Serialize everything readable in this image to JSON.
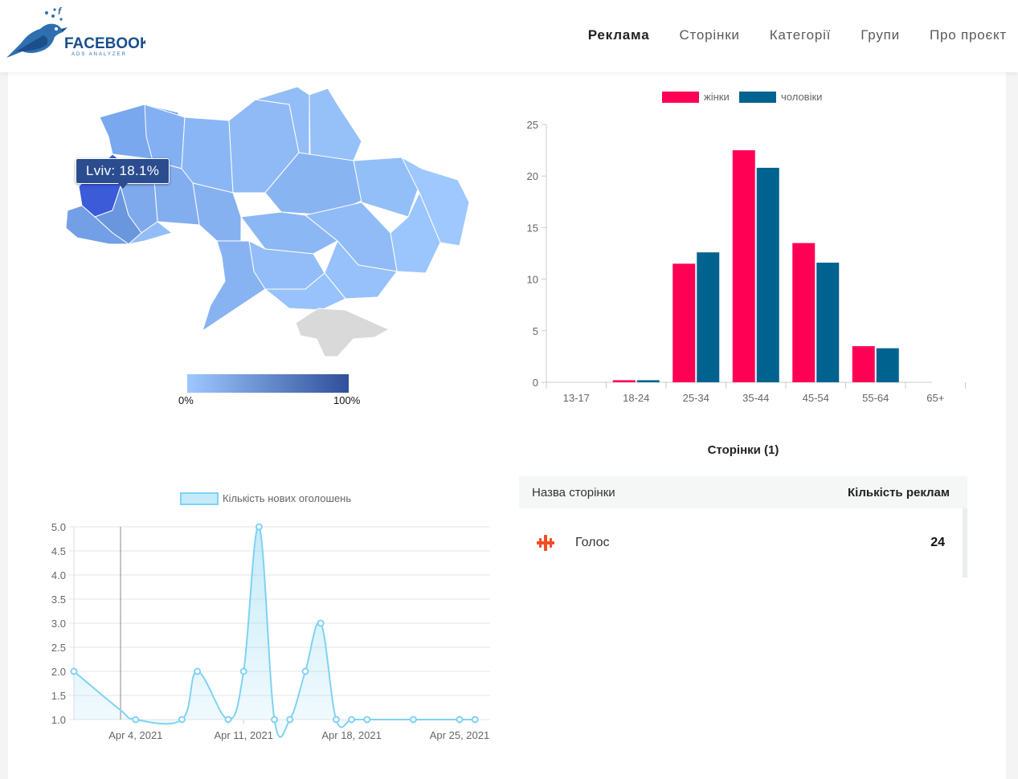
{
  "header": {
    "logo_text": "FACEBOOK",
    "logo_subtext": "ADS ANALYZER",
    "nav": [
      {
        "label": "Реклама",
        "active": true
      },
      {
        "label": "Сторінки",
        "active": false
      },
      {
        "label": "Категорії",
        "active": false
      },
      {
        "label": "Групи",
        "active": false
      },
      {
        "label": "Про проєкт",
        "active": false
      }
    ]
  },
  "map": {
    "tooltip": "Lviv: 18.1%",
    "scale_min": "0%",
    "scale_max": "100%",
    "colors": {
      "low": "#9ec8ff",
      "high": "#2f4f9a",
      "highlight": "#3b5bd9",
      "crimea": "#d9d9d9"
    }
  },
  "chart_data": [
    {
      "type": "bar",
      "categories": [
        "13-17",
        "18-24",
        "25-34",
        "35-44",
        "45-54",
        "55-64",
        "65+"
      ],
      "series": [
        {
          "name": "жінки",
          "color": "#ff0055",
          "values": [
            0,
            0.2,
            11.5,
            22.5,
            13.5,
            3.5,
            0
          ]
        },
        {
          "name": "чоловіки",
          "color": "#00628f",
          "values": [
            0,
            0.2,
            12.6,
            20.8,
            11.6,
            3.3,
            0
          ]
        }
      ],
      "ylim": [
        0,
        25
      ],
      "yticks": [
        0,
        5,
        10,
        15,
        20,
        25
      ],
      "legend": "top-center"
    },
    {
      "type": "area",
      "series": [
        {
          "name": "Кількість нових оголошень",
          "color": "#7fd2f3",
          "x": [
            "2021-03-31",
            "2021-04-03",
            "2021-04-04",
            "2021-04-07",
            "2021-04-08",
            "2021-04-10",
            "2021-04-11",
            "2021-04-12",
            "2021-04-13",
            "2021-04-14",
            "2021-04-15",
            "2021-04-16",
            "2021-04-17",
            "2021-04-18",
            "2021-04-19",
            "2021-04-22",
            "2021-04-25",
            "2021-04-26"
          ],
          "values": [
            2,
            1.2,
            1,
            1,
            2,
            1,
            2,
            5,
            1,
            1,
            2,
            3,
            1,
            1,
            1,
            1,
            1,
            1
          ]
        }
      ],
      "xticks": [
        "Apr 4, 2021",
        "Apr 11, 2021",
        "Apr 18, 2021",
        "Apr 25, 2021"
      ],
      "ylim": [
        1,
        5
      ],
      "yticks": [
        "1.0",
        "1.5",
        "2.0",
        "2.5",
        "3.0",
        "3.5",
        "4.0",
        "4.5",
        "5.0"
      ],
      "legend": "top-center"
    }
  ],
  "pages_table": {
    "title": "Сторінки (1)",
    "col_name": "Назва сторінки",
    "col_count": "Кількість реклам",
    "rows": [
      {
        "name": "Голос",
        "count": "24",
        "icon": "golos-logo-icon"
      }
    ]
  }
}
